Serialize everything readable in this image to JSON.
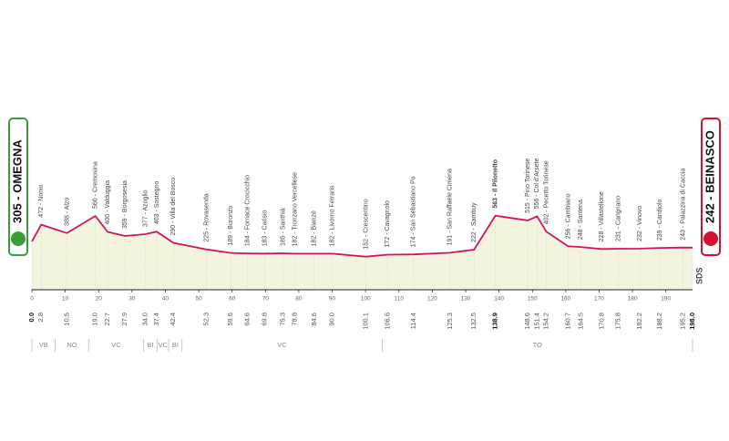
{
  "chart_data": {
    "type": "area",
    "start": "305 - OMEGNA",
    "finish": "242 - BEINASCO",
    "logo": "SDS",
    "x": [
      0.0,
      2.8,
      10.5,
      19.0,
      22.7,
      27.9,
      34.0,
      37.4,
      42.4,
      52.3,
      59.6,
      64.6,
      69.8,
      75.3,
      78.8,
      84.6,
      90.0,
      100.1,
      106.6,
      114.4,
      125.3,
      132.5,
      138.9,
      148.6,
      151.4,
      154.2,
      160.7,
      164.5,
      170.8,
      175.8,
      182.2,
      188.2,
      195.2,
      198.0
    ],
    "x_labels": [
      "0.0",
      "2.8",
      "10.5",
      "19.0",
      "22.7",
      "27.9",
      "34.0",
      "37.4",
      "42.4",
      "52.3",
      "59.6",
      "64.6",
      "69.8",
      "75.3",
      "78.8",
      "84.6",
      "90.0",
      "100.1",
      "106.6",
      "114.4",
      "125.3",
      "132.5",
      "138.9",
      "148.6",
      "151.4",
      "154.2",
      "160.7",
      "164.5",
      "170.8",
      "175.8",
      "182.2",
      "188.2",
      "195.2",
      "198.0"
    ],
    "values": [
      305,
      472,
      388,
      560,
      400,
      359,
      377,
      403,
      290,
      225,
      189,
      184,
      183,
      185,
      182,
      182,
      182,
      152,
      172,
      174,
      191,
      222,
      563,
      515,
      556,
      402,
      256,
      248,
      228,
      231,
      232,
      239,
      243,
      242
    ],
    "point_labels": [
      null,
      "472 - Nonio",
      "388 - Alzo",
      "560 - Cremosina",
      "400 - Valduggia",
      "359 - Borgosesia",
      "377 - Azoglio",
      "403 - Sostegno",
      "290 - Villa del Bosco",
      "225 - Rovasenda",
      "189 - Buronzo",
      "184 - Fornace Crocicchio",
      "183 - Carisio",
      "185 - Santhià",
      "182 - Tronzano Vercellese",
      "182 - Bianzè",
      "182 - Livorno Ferraris",
      "152 - Crescentino",
      "172 - Cavagnolo",
      "174 - San Sebastiano Po",
      "191 - San Raffaele Cimena",
      "222 - Sambuy",
      "563 - Il Pilonetto",
      "515 - Pino Torinese",
      "556 - Col d'Arsete",
      "402 - Pecetto Torinese",
      "256 - Cambiano",
      "248 - Santena",
      "228 - Villastellone",
      "231 - Carignano",
      "232 - Vinovo",
      "239 - Candiolo",
      "243 - Palazzina di Caccia",
      null
    ],
    "bold": [
      0,
      22,
      33
    ],
    "color": "#d0155a",
    "fill": "#f2f4de",
    "xlim": [
      0,
      198
    ],
    "xticks": [
      0,
      10,
      20,
      30,
      40,
      50,
      60,
      70,
      80,
      90,
      100,
      110,
      120,
      130,
      140,
      150,
      160,
      170,
      180,
      190
    ],
    "ylim": [
      -180,
      600
    ],
    "regions": [
      {
        "label": "VB",
        "from": 0,
        "to": 7
      },
      {
        "label": "NO",
        "from": 7,
        "to": 17
      },
      {
        "label": "VC",
        "from": 17,
        "to": 33.5
      },
      {
        "label": "BI",
        "from": 33.5,
        "to": 37.5
      },
      {
        "label": "VC",
        "from": 37.5,
        "to": 41
      },
      {
        "label": "BI",
        "from": 41,
        "to": 45
      },
      {
        "label": "VC",
        "from": 45,
        "to": 105
      },
      {
        "label": "TO",
        "from": 105,
        "to": 198
      }
    ]
  }
}
